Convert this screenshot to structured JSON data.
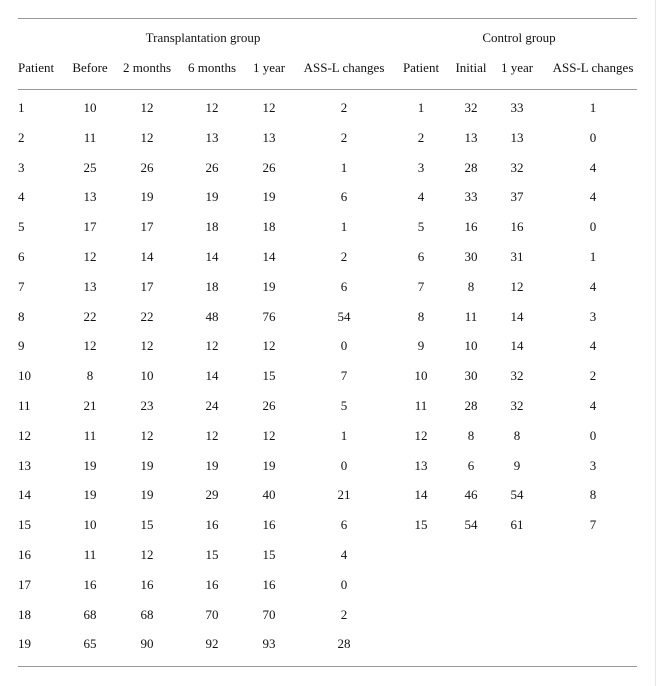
{
  "table": {
    "group_headers": {
      "transplantation": "Transplantation group",
      "control": "Control group"
    },
    "columns_transplantation": [
      "Patient",
      "Before",
      "2 months",
      "6 months",
      "1 year",
      "ASS-L changes"
    ],
    "columns_control": [
      "Patient",
      "Initial",
      "1 year",
      "ASS-L changes"
    ],
    "transplantation_rows": [
      [
        "1",
        "10",
        "12",
        "12",
        "12",
        "2"
      ],
      [
        "2",
        "11",
        "12",
        "13",
        "13",
        "2"
      ],
      [
        "3",
        "25",
        "26",
        "26",
        "26",
        "1"
      ],
      [
        "4",
        "13",
        "19",
        "19",
        "19",
        "6"
      ],
      [
        "5",
        "17",
        "17",
        "18",
        "18",
        "1"
      ],
      [
        "6",
        "12",
        "14",
        "14",
        "14",
        "2"
      ],
      [
        "7",
        "13",
        "17",
        "18",
        "19",
        "6"
      ],
      [
        "8",
        "22",
        "22",
        "48",
        "76",
        "54"
      ],
      [
        "9",
        "12",
        "12",
        "12",
        "12",
        "0"
      ],
      [
        "10",
        "8",
        "10",
        "14",
        "15",
        "7"
      ],
      [
        "11",
        "21",
        "23",
        "24",
        "26",
        "5"
      ],
      [
        "12",
        "11",
        "12",
        "12",
        "12",
        "1"
      ],
      [
        "13",
        "19",
        "19",
        "19",
        "19",
        "0"
      ],
      [
        "14",
        "19",
        "19",
        "29",
        "40",
        "21"
      ],
      [
        "15",
        "10",
        "15",
        "16",
        "16",
        "6"
      ],
      [
        "16",
        "11",
        "12",
        "15",
        "15",
        "4"
      ],
      [
        "17",
        "16",
        "16",
        "16",
        "16",
        "0"
      ],
      [
        "18",
        "68",
        "68",
        "70",
        "70",
        "2"
      ],
      [
        "19",
        "65",
        "90",
        "92",
        "93",
        "28"
      ]
    ],
    "control_rows": [
      [
        "1",
        "32",
        "33",
        "1"
      ],
      [
        "2",
        "13",
        "13",
        "0"
      ],
      [
        "3",
        "28",
        "32",
        "4"
      ],
      [
        "4",
        "33",
        "37",
        "4"
      ],
      [
        "5",
        "16",
        "16",
        "0"
      ],
      [
        "6",
        "30",
        "31",
        "1"
      ],
      [
        "7",
        "8",
        "12",
        "4"
      ],
      [
        "8",
        "11",
        "14",
        "3"
      ],
      [
        "9",
        "10",
        "14",
        "4"
      ],
      [
        "10",
        "30",
        "32",
        "2"
      ],
      [
        "11",
        "28",
        "32",
        "4"
      ],
      [
        "12",
        "8",
        "8",
        "0"
      ],
      [
        "13",
        "6",
        "9",
        "3"
      ],
      [
        "14",
        "46",
        "54",
        "8"
      ],
      [
        "15",
        "54",
        "61",
        "7"
      ]
    ]
  }
}
